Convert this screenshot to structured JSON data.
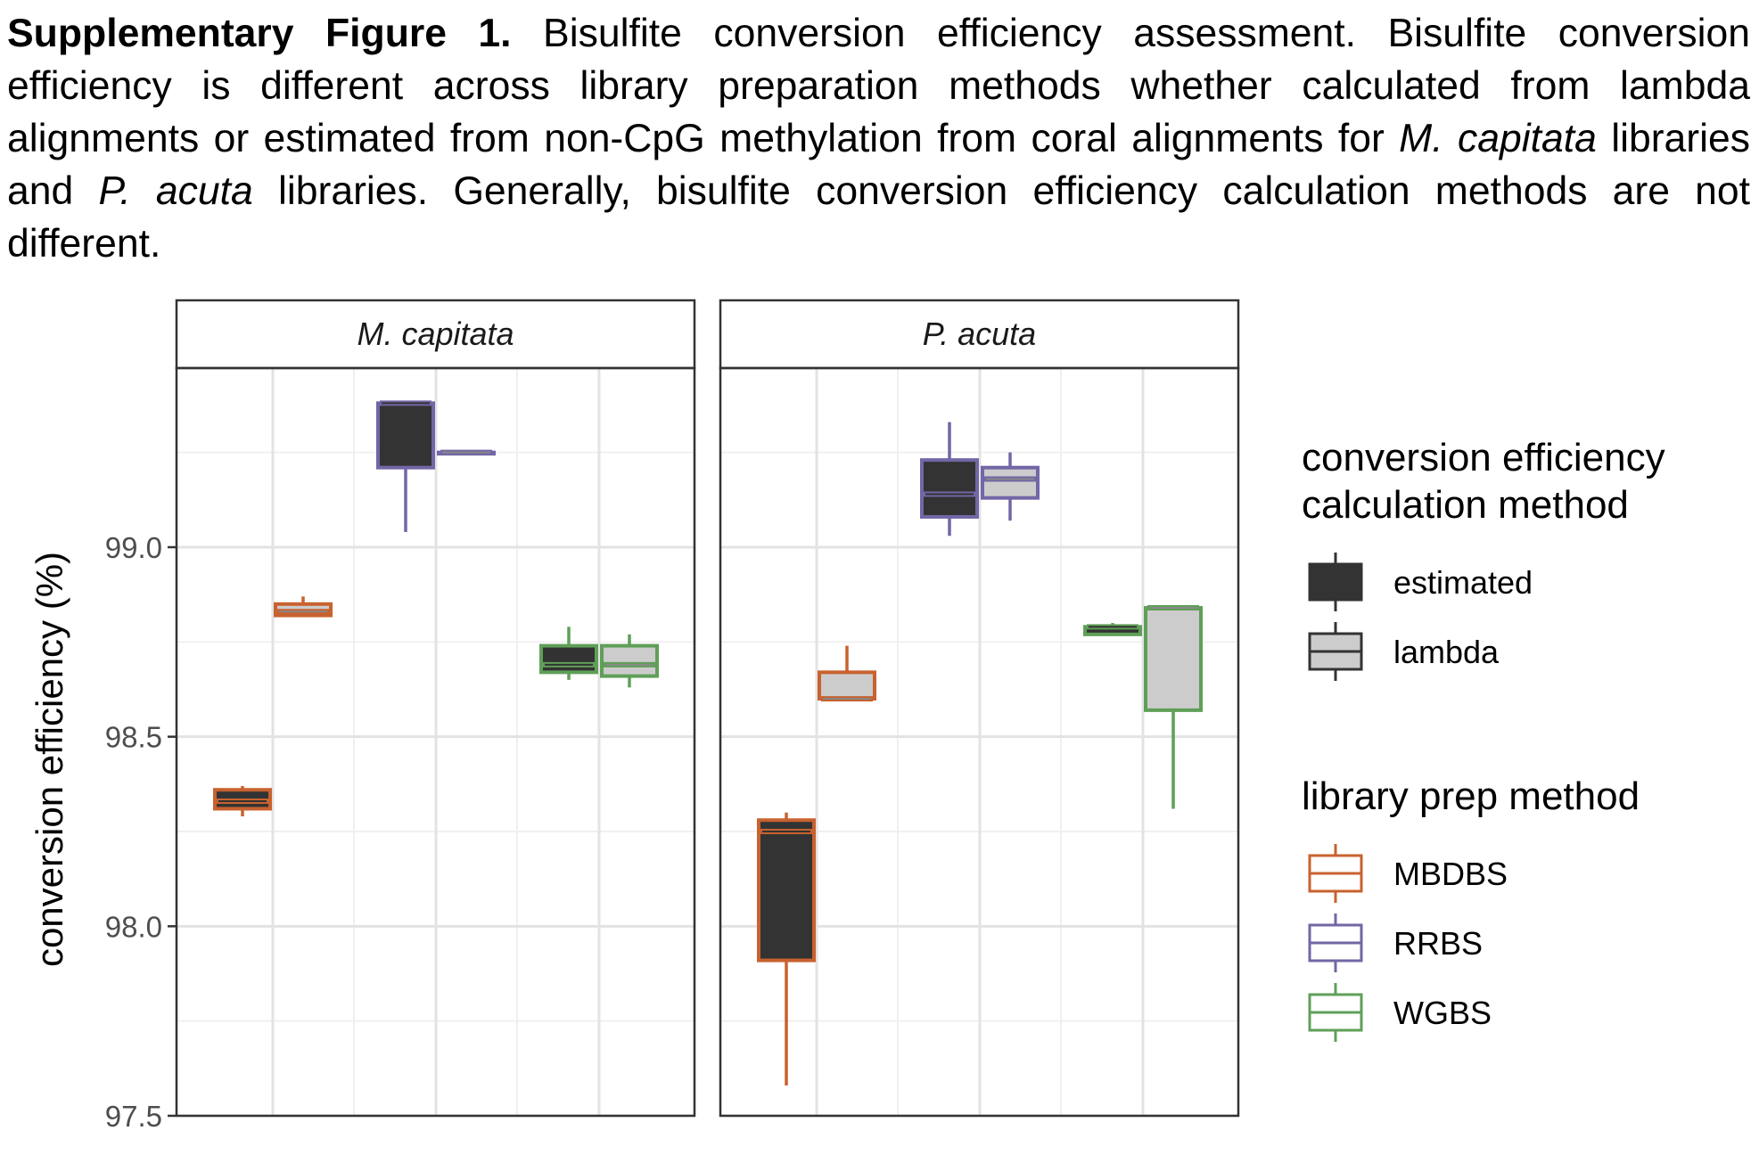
{
  "caption": {
    "label": "Supplementary Figure 1.",
    "text_1": " Bisulfite conversion efficiency assessment. Bisulfite conversion efficiency is different across library preparation methods whether calculated from lambda alignments or estimated from non-CpG methylation from coral alignments for ",
    "species_1": "M. capitata",
    "text_2": " libraries and ",
    "species_2": "P. acuta",
    "text_3": " libraries. Generally, bisulfite conversion efficiency calculation methods are not different."
  },
  "chart_data": {
    "type": "boxplot",
    "ylabel": "conversion efficiency (%)",
    "ylim": [
      97.5,
      100.0
    ],
    "yticks": [
      "97.5",
      "98.0",
      "98.5",
      "99.0"
    ],
    "grid": true,
    "panels": [
      {
        "title": "M. capitata",
        "groups": [
          "MBDBS",
          "RRBS",
          "WGBS"
        ],
        "boxes": [
          {
            "prep": "MBDBS",
            "method": "estimated",
            "lower_whisker": 98.29,
            "q1": 98.31,
            "median": 98.33,
            "q3": 98.36,
            "upper_whisker": 98.37
          },
          {
            "prep": "MBDBS",
            "method": "lambda",
            "lower_whisker": 98.82,
            "q1": 98.82,
            "median": 98.83,
            "q3": 98.85,
            "upper_whisker": 98.87
          },
          {
            "prep": "RRBS",
            "method": "estimated",
            "lower_whisker": 99.04,
            "q1": 99.21,
            "median": 99.38,
            "q3": 99.38,
            "upper_whisker": 99.38
          },
          {
            "prep": "RRBS",
            "method": "lambda",
            "lower_whisker": 99.25,
            "q1": 99.25,
            "median": 99.25,
            "q3": 99.25,
            "upper_whisker": 99.25
          },
          {
            "prep": "WGBS",
            "method": "estimated",
            "lower_whisker": 98.65,
            "q1": 98.67,
            "median": 98.69,
            "q3": 98.74,
            "upper_whisker": 98.79
          },
          {
            "prep": "WGBS",
            "method": "lambda",
            "lower_whisker": 98.63,
            "q1": 98.66,
            "median": 98.69,
            "q3": 98.74,
            "upper_whisker": 98.77
          }
        ]
      },
      {
        "title": "P. acuta",
        "groups": [
          "MBDBS",
          "RRBS",
          "WGBS"
        ],
        "boxes": [
          {
            "prep": "MBDBS",
            "method": "estimated",
            "lower_whisker": 97.58,
            "q1": 97.91,
            "median": 98.25,
            "q3": 98.28,
            "upper_whisker": 98.3
          },
          {
            "prep": "MBDBS",
            "method": "lambda",
            "lower_whisker": 98.6,
            "q1": 98.6,
            "median": 98.6,
            "q3": 98.67,
            "upper_whisker": 98.74
          },
          {
            "prep": "RRBS",
            "method": "estimated",
            "lower_whisker": 99.03,
            "q1": 99.08,
            "median": 99.14,
            "q3": 99.23,
            "upper_whisker": 99.33
          },
          {
            "prep": "RRBS",
            "method": "lambda",
            "lower_whisker": 99.07,
            "q1": 99.13,
            "median": 99.18,
            "q3": 99.21,
            "upper_whisker": 99.25
          },
          {
            "prep": "WGBS",
            "method": "estimated",
            "lower_whisker": 98.77,
            "q1": 98.77,
            "median": 98.79,
            "q3": 98.79,
            "upper_whisker": 98.8
          },
          {
            "prep": "WGBS",
            "method": "lambda",
            "lower_whisker": 98.31,
            "q1": 98.57,
            "median": 98.84,
            "q3": 98.84,
            "upper_whisker": 98.84
          }
        ]
      }
    ],
    "legend": {
      "position": "right",
      "method_title_line1": "conversion efficiency",
      "method_title_line2": "calculation method",
      "methods": [
        {
          "name": "estimated",
          "fill": "#333333"
        },
        {
          "name": "lambda",
          "fill": "#cccccc"
        }
      ],
      "prep_title": "library prep method",
      "preps": [
        {
          "name": "MBDBS",
          "color": "#c8622f"
        },
        {
          "name": "RRBS",
          "color": "#7366a6"
        },
        {
          "name": "WGBS",
          "color": "#5f9f58"
        }
      ]
    }
  }
}
